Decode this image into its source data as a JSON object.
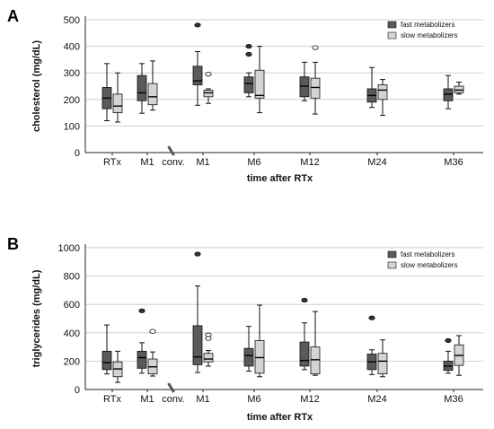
{
  "colors": {
    "fast": "#5a5a5a",
    "slow": "#d4d4d4",
    "grid": "#cfcfcf",
    "axis": "#222222"
  },
  "chart_data": [
    {
      "panel_label": "A",
      "type": "boxplot",
      "xlabel": "time after RTx",
      "ylabel": "cholesterol (mg/dL)",
      "ylim": [
        0,
        500
      ],
      "yticks": [
        0,
        100,
        200,
        300,
        400,
        500
      ],
      "grid": true,
      "legend_position": "top-right",
      "categories": [
        "RTx",
        "M1",
        "conv.",
        "M1",
        "M6",
        "M12",
        "M24",
        "M36"
      ],
      "series": [
        {
          "name": "fast metabolizers",
          "boxes": [
            {
              "category": 0,
              "min": 120,
              "q1": 165,
              "median": 205,
              "q3": 245,
              "max": 335,
              "outliers": []
            },
            {
              "category": 1,
              "min": 148,
              "q1": 195,
              "median": 225,
              "q3": 290,
              "max": 335,
              "outliers": []
            },
            {
              "category": 3,
              "min": 178,
              "q1": 255,
              "median": 270,
              "q3": 325,
              "max": 380,
              "outliers": [
                480
              ]
            },
            {
              "category": 4,
              "min": 210,
              "q1": 225,
              "median": 260,
              "q3": 285,
              "max": 300,
              "outliers": [
                400,
                370
              ]
            },
            {
              "category": 5,
              "min": 195,
              "q1": 210,
              "median": 250,
              "q3": 285,
              "max": 340,
              "outliers": []
            },
            {
              "category": 6,
              "min": 170,
              "q1": 190,
              "median": 215,
              "q3": 240,
              "max": 320,
              "outliers": []
            },
            {
              "category": 7,
              "min": 165,
              "q1": 195,
              "median": 220,
              "q3": 240,
              "max": 290,
              "outliers": []
            }
          ]
        },
        {
          "name": "slow metabolizers",
          "boxes": [
            {
              "category": 0,
              "min": 115,
              "q1": 150,
              "median": 175,
              "q3": 220,
              "max": 300,
              "outliers": []
            },
            {
              "category": 1,
              "min": 160,
              "q1": 180,
              "median": 210,
              "q3": 260,
              "max": 345,
              "outliers": []
            },
            {
              "category": 3,
              "min": 185,
              "q1": 210,
              "median": 225,
              "q3": 235,
              "max": 240,
              "outliers": [
                295
              ]
            },
            {
              "category": 4,
              "min": 150,
              "q1": 205,
              "median": 215,
              "q3": 310,
              "max": 400,
              "outliers": []
            },
            {
              "category": 5,
              "min": 145,
              "q1": 205,
              "median": 245,
              "q3": 280,
              "max": 340,
              "outliers": [
                395
              ]
            },
            {
              "category": 6,
              "min": 140,
              "q1": 200,
              "median": 235,
              "q3": 255,
              "max": 275,
              "outliers": []
            },
            {
              "category": 7,
              "min": 220,
              "q1": 225,
              "median": 235,
              "q3": 250,
              "max": 265,
              "outliers": []
            }
          ]
        }
      ]
    },
    {
      "panel_label": "B",
      "type": "boxplot",
      "xlabel": "time after RTx",
      "ylabel": "triglycerides (mg/dL)",
      "ylim": [
        0,
        1000
      ],
      "yticks": [
        0,
        200,
        400,
        600,
        800,
        1000
      ],
      "grid": true,
      "legend_position": "top-right",
      "categories": [
        "RTx",
        "M1",
        "conv.",
        "M1",
        "M6",
        "M12",
        "M24",
        "M36"
      ],
      "series": [
        {
          "name": "fast metabolizers",
          "boxes": [
            {
              "category": 0,
              "min": 110,
              "q1": 140,
              "median": 190,
              "q3": 270,
              "max": 455,
              "outliers": []
            },
            {
              "category": 1,
              "min": 115,
              "q1": 150,
              "median": 225,
              "q3": 270,
              "max": 330,
              "outliers": [
                555
              ]
            },
            {
              "category": 3,
              "min": 120,
              "q1": 175,
              "median": 230,
              "q3": 450,
              "max": 730,
              "outliers": [
                955
              ]
            },
            {
              "category": 4,
              "min": 130,
              "q1": 165,
              "median": 240,
              "q3": 290,
              "max": 445,
              "outliers": []
            },
            {
              "category": 5,
              "min": 140,
              "q1": 165,
              "median": 205,
              "q3": 335,
              "max": 470,
              "outliers": [
                630
              ]
            },
            {
              "category": 6,
              "min": 105,
              "q1": 140,
              "median": 195,
              "q3": 250,
              "max": 280,
              "outliers": [
                505
              ]
            },
            {
              "category": 7,
              "min": 115,
              "q1": 135,
              "median": 165,
              "q3": 200,
              "max": 270,
              "outliers": [
                345
              ]
            }
          ]
        },
        {
          "name": "slow metabolizers",
          "boxes": [
            {
              "category": 0,
              "min": 50,
              "q1": 90,
              "median": 145,
              "q3": 195,
              "max": 270,
              "outliers": []
            },
            {
              "category": 1,
              "min": 95,
              "q1": 110,
              "median": 160,
              "q3": 215,
              "max": 265,
              "outliers": [
                410
              ]
            },
            {
              "category": 3,
              "min": 165,
              "q1": 195,
              "median": 215,
              "q3": 255,
              "max": 275,
              "outliers": [
                385,
                360
              ]
            },
            {
              "category": 4,
              "min": 90,
              "q1": 115,
              "median": 225,
              "q3": 345,
              "max": 595,
              "outliers": []
            },
            {
              "category": 5,
              "min": 100,
              "q1": 110,
              "median": 210,
              "q3": 300,
              "max": 550,
              "outliers": []
            },
            {
              "category": 6,
              "min": 90,
              "q1": 110,
              "median": 200,
              "q3": 255,
              "max": 350,
              "outliers": []
            },
            {
              "category": 7,
              "min": 100,
              "q1": 170,
              "median": 240,
              "q3": 315,
              "max": 380,
              "outliers": []
            }
          ]
        }
      ]
    }
  ]
}
